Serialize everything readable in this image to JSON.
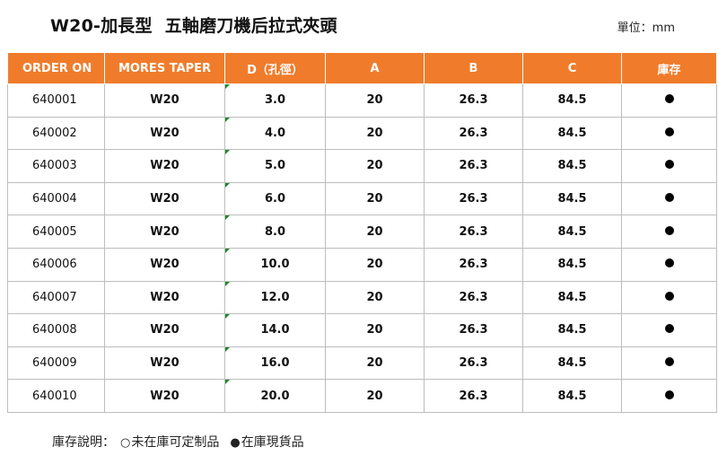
{
  "header": {
    "model": "W20-加長型",
    "subtitle": "五軸磨刀機后拉式夾頭",
    "unit": "單位：mm"
  },
  "table": {
    "columns": [
      "ORDER ON",
      "MORES TAPER",
      "D（孔徑）",
      "A",
      "B",
      "C",
      "庫存"
    ],
    "rows": [
      {
        "order": "640001",
        "taper": "W20",
        "d": "3.0",
        "a": "20",
        "b": "26.3",
        "c": "84.5",
        "stock": "in-stock"
      },
      {
        "order": "640002",
        "taper": "W20",
        "d": "4.0",
        "a": "20",
        "b": "26.3",
        "c": "84.5",
        "stock": "in-stock"
      },
      {
        "order": "640003",
        "taper": "W20",
        "d": "5.0",
        "a": "20",
        "b": "26.3",
        "c": "84.5",
        "stock": "in-stock"
      },
      {
        "order": "640004",
        "taper": "W20",
        "d": "6.0",
        "a": "20",
        "b": "26.3",
        "c": "84.5",
        "stock": "in-stock"
      },
      {
        "order": "640005",
        "taper": "W20",
        "d": "8.0",
        "a": "20",
        "b": "26.3",
        "c": "84.5",
        "stock": "in-stock"
      },
      {
        "order": "640006",
        "taper": "W20",
        "d": "10.0",
        "a": "20",
        "b": "26.3",
        "c": "84.5",
        "stock": "in-stock"
      },
      {
        "order": "640007",
        "taper": "W20",
        "d": "12.0",
        "a": "20",
        "b": "26.3",
        "c": "84.5",
        "stock": "in-stock"
      },
      {
        "order": "640008",
        "taper": "W20",
        "d": "14.0",
        "a": "20",
        "b": "26.3",
        "c": "84.5",
        "stock": "in-stock"
      },
      {
        "order": "640009",
        "taper": "W20",
        "d": "16.0",
        "a": "20",
        "b": "26.3",
        "c": "84.5",
        "stock": "in-stock"
      },
      {
        "order": "640010",
        "taper": "W20",
        "d": "20.0",
        "a": "20",
        "b": "26.3",
        "c": "84.5",
        "stock": "in-stock"
      }
    ]
  },
  "legend": {
    "label": "庫存說明：",
    "open_symbol": "○",
    "open_text": "未在庫可定制品",
    "filled_symbol": "●",
    "filled_text": "在庫現貨品"
  },
  "colors": {
    "header_bg": "#f07c2b",
    "header_text": "#ffffff",
    "grid": "#bdbdbd",
    "cell_marker": "#1a8a2a"
  }
}
